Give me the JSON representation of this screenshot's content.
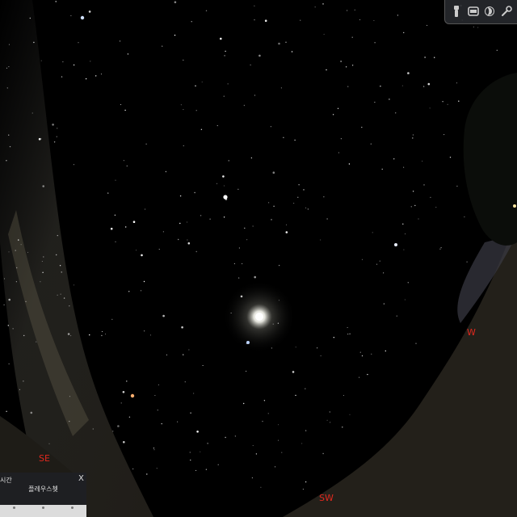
{
  "cardinals": {
    "se": "SE",
    "sw": "SW",
    "w": "W"
  },
  "toolbar": {
    "icons": [
      "flashlight-icon",
      "sky-view-icon",
      "night-mode-icon",
      "settings-icon"
    ]
  },
  "panel": {
    "title": "시간",
    "close": "X",
    "subtitle": "플레우스쳊"
  },
  "colors": {
    "cardinal": "#e0281e",
    "sky": "#000000",
    "ground": "#23201a"
  }
}
